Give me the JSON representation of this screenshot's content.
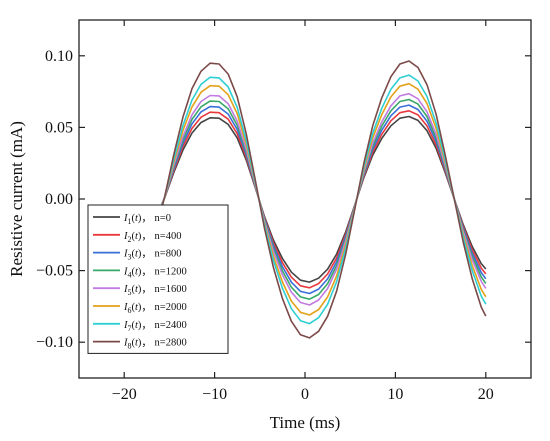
{
  "chart_data": {
    "type": "line",
    "xlabel": "Time (ms)",
    "ylabel": "Resistive current (mA)",
    "xlim": [
      -25,
      25
    ],
    "ylim": [
      -0.125,
      0.125
    ],
    "xticks": [
      -20,
      -10,
      0,
      10,
      20
    ],
    "xtick_labels": [
      "−20",
      "−10",
      "0",
      "10",
      "20"
    ],
    "yticks": [
      0.1,
      0.05,
      0.0,
      -0.05,
      -0.1
    ],
    "ytick_labels": [
      "0.10",
      "0.05",
      "0.00",
      "−0.05",
      "−0.10"
    ],
    "legend_position": "bottom-left",
    "x": [
      -16.5,
      -15.5,
      -14.5,
      -13.5,
      -12.5,
      -11.5,
      -10.5,
      -9.5,
      -8.5,
      -7.5,
      -6.5,
      -5.5,
      -4.5,
      -3.5,
      -2.5,
      -1.5,
      -0.5,
      0.5,
      1.5,
      2.5,
      3.5,
      4.5,
      5.5,
      6.5,
      7.5,
      8.5,
      9.5,
      10.5,
      11.5,
      12.5,
      13.5,
      14.5,
      15.5,
      16.5,
      17.5,
      18.5,
      19.5,
      20.0
    ],
    "series": [
      {
        "name": "I1(t)， n=0",
        "sub": "1",
        "text": "n=0",
        "color": "#444444",
        "amplitude": 0.058,
        "values": [
          -0.0136,
          0.0013,
          0.0187,
          0.0343,
          0.0461,
          0.0534,
          0.0567,
          0.0564,
          0.0521,
          0.0427,
          0.0273,
          0.0079,
          -0.0119,
          -0.0286,
          -0.0415,
          -0.0511,
          -0.0567,
          -0.058,
          -0.0553,
          -0.049,
          -0.0385,
          -0.023,
          -0.0044,
          0.0148,
          0.0307,
          0.0423,
          0.0511,
          0.0564,
          0.0576,
          0.0549,
          0.0477,
          0.0354,
          0.0186,
          0.0002,
          -0.0179,
          -0.0332,
          -0.0452,
          -0.0489
        ]
      },
      {
        "name": "I2(t)， n=400",
        "sub": "2",
        "text": "n=400",
        "color": "#e8383d",
        "amplitude": 0.062,
        "values": [
          -0.0145,
          0.0014,
          0.02,
          0.0367,
          0.0493,
          0.0571,
          0.0606,
          0.0603,
          0.0557,
          0.0456,
          0.0292,
          0.0084,
          -0.0127,
          -0.0306,
          -0.0444,
          -0.0546,
          -0.0606,
          -0.062,
          -0.0591,
          -0.0524,
          -0.0412,
          -0.0246,
          -0.0047,
          0.0158,
          0.0328,
          0.0452,
          0.0546,
          0.0603,
          0.0616,
          0.0587,
          0.051,
          0.0378,
          0.0199,
          0.0002,
          -0.0191,
          -0.0355,
          -0.0483,
          -0.0523
        ]
      },
      {
        "name": "I3(t)， n=800",
        "sub": "3",
        "text": "n=800",
        "color": "#3a6fd8",
        "amplitude": 0.066,
        "values": [
          -0.0155,
          0.0015,
          0.0213,
          0.039,
          0.0525,
          0.0608,
          0.0645,
          0.0642,
          0.0593,
          0.0486,
          0.0311,
          0.009,
          -0.0135,
          -0.0325,
          -0.0472,
          -0.0581,
          -0.0645,
          -0.066,
          -0.0629,
          -0.0558,
          -0.0438,
          -0.0262,
          -0.005,
          0.0168,
          0.0349,
          0.0481,
          0.0581,
          0.0642,
          0.0656,
          0.0625,
          0.0543,
          0.0403,
          0.0212,
          0.0002,
          -0.0204,
          -0.0378,
          -0.0514,
          -0.0557
        ]
      },
      {
        "name": "I4(t)， n=1200",
        "sub": "4",
        "text": "n=1200",
        "color": "#3aa868",
        "amplitude": 0.07,
        "values": [
          -0.0164,
          0.0016,
          0.0226,
          0.0414,
          0.0556,
          0.0644,
          0.0684,
          0.0681,
          0.0629,
          0.0515,
          0.033,
          0.0095,
          -0.0143,
          -0.0345,
          -0.0501,
          -0.0616,
          -0.0684,
          -0.07,
          -0.0667,
          -0.0591,
          -0.0465,
          -0.0278,
          -0.0053,
          0.0178,
          0.037,
          0.051,
          0.0616,
          0.0681,
          0.0695,
          0.0663,
          0.0576,
          0.0427,
          0.0224,
          0.0002,
          -0.0216,
          -0.0401,
          -0.0545,
          -0.059
        ]
      },
      {
        "name": "I5(t)， n=1600",
        "sub": "5",
        "text": "n=1600",
        "color": "#c27be0",
        "amplitude": 0.074,
        "values": [
          -0.0174,
          0.0017,
          0.0239,
          0.0437,
          0.0588,
          0.0681,
          0.0723,
          0.072,
          0.0665,
          0.0544,
          0.0349,
          0.01,
          -0.0151,
          -0.0365,
          -0.0529,
          -0.0651,
          -0.0723,
          -0.074,
          -0.0705,
          -0.0625,
          -0.0491,
          -0.0293,
          -0.0056,
          0.0189,
          0.0391,
          0.0539,
          0.0651,
          0.072,
          0.0735,
          0.07,
          0.0609,
          0.0452,
          0.0237,
          0.0002,
          -0.0228,
          -0.0424,
          -0.0576,
          -0.0624
        ]
      },
      {
        "name": "I6(t)， n=2000",
        "sub": "6",
        "text": "n=2000",
        "color": "#e3a21a",
        "amplitude": 0.081,
        "values": [
          -0.019,
          0.0018,
          0.0261,
          0.0479,
          0.0643,
          0.0745,
          0.0791,
          0.0788,
          0.0728,
          0.0596,
          0.0382,
          0.011,
          -0.0166,
          -0.0399,
          -0.0579,
          -0.0713,
          -0.0791,
          -0.081,
          -0.0772,
          -0.0684,
          -0.0538,
          -0.0321,
          -0.0061,
          0.0206,
          0.0428,
          0.059,
          0.0713,
          0.0788,
          0.0805,
          0.0767,
          0.0666,
          0.0494,
          0.026,
          0.0002,
          -0.025,
          -0.0464,
          -0.0631,
          -0.0683
        ]
      },
      {
        "name": "I7(t)， n=2400",
        "sub": "7",
        "text": "n=2400",
        "color": "#2ecfd3",
        "amplitude": 0.087,
        "values": [
          -0.0204,
          0.002,
          0.0281,
          0.0514,
          0.0691,
          0.08,
          0.085,
          0.0846,
          0.0782,
          0.064,
          0.041,
          0.0118,
          -0.0178,
          -0.0429,
          -0.0622,
          -0.0766,
          -0.085,
          -0.087,
          -0.0829,
          -0.0735,
          -0.0578,
          -0.0345,
          -0.0066,
          0.0222,
          0.046,
          0.0634,
          0.0766,
          0.0846,
          0.0865,
          0.0824,
          0.0716,
          0.0531,
          0.0279,
          0.0003,
          -0.0269,
          -0.0499,
          -0.0678,
          -0.0734
        ]
      },
      {
        "name": "I8(t)， n=2800",
        "sub": "8",
        "text": "n=2800",
        "color": "#7b4a48",
        "amplitude": 0.097,
        "values": [
          -0.0228,
          0.0022,
          0.0313,
          0.0573,
          0.0771,
          0.0892,
          0.0948,
          0.0943,
          0.0872,
          0.0714,
          0.0457,
          0.0132,
          -0.0198,
          -0.0478,
          -0.0694,
          -0.0854,
          -0.0948,
          -0.097,
          -0.0924,
          -0.0819,
          -0.0644,
          -0.0385,
          -0.0073,
          0.0247,
          0.0513,
          0.0707,
          0.0854,
          0.0943,
          0.0964,
          0.0918,
          0.0798,
          0.0592,
          0.0311,
          0.0003,
          -0.03,
          -0.0556,
          -0.0756,
          -0.0818
        ]
      }
    ]
  }
}
